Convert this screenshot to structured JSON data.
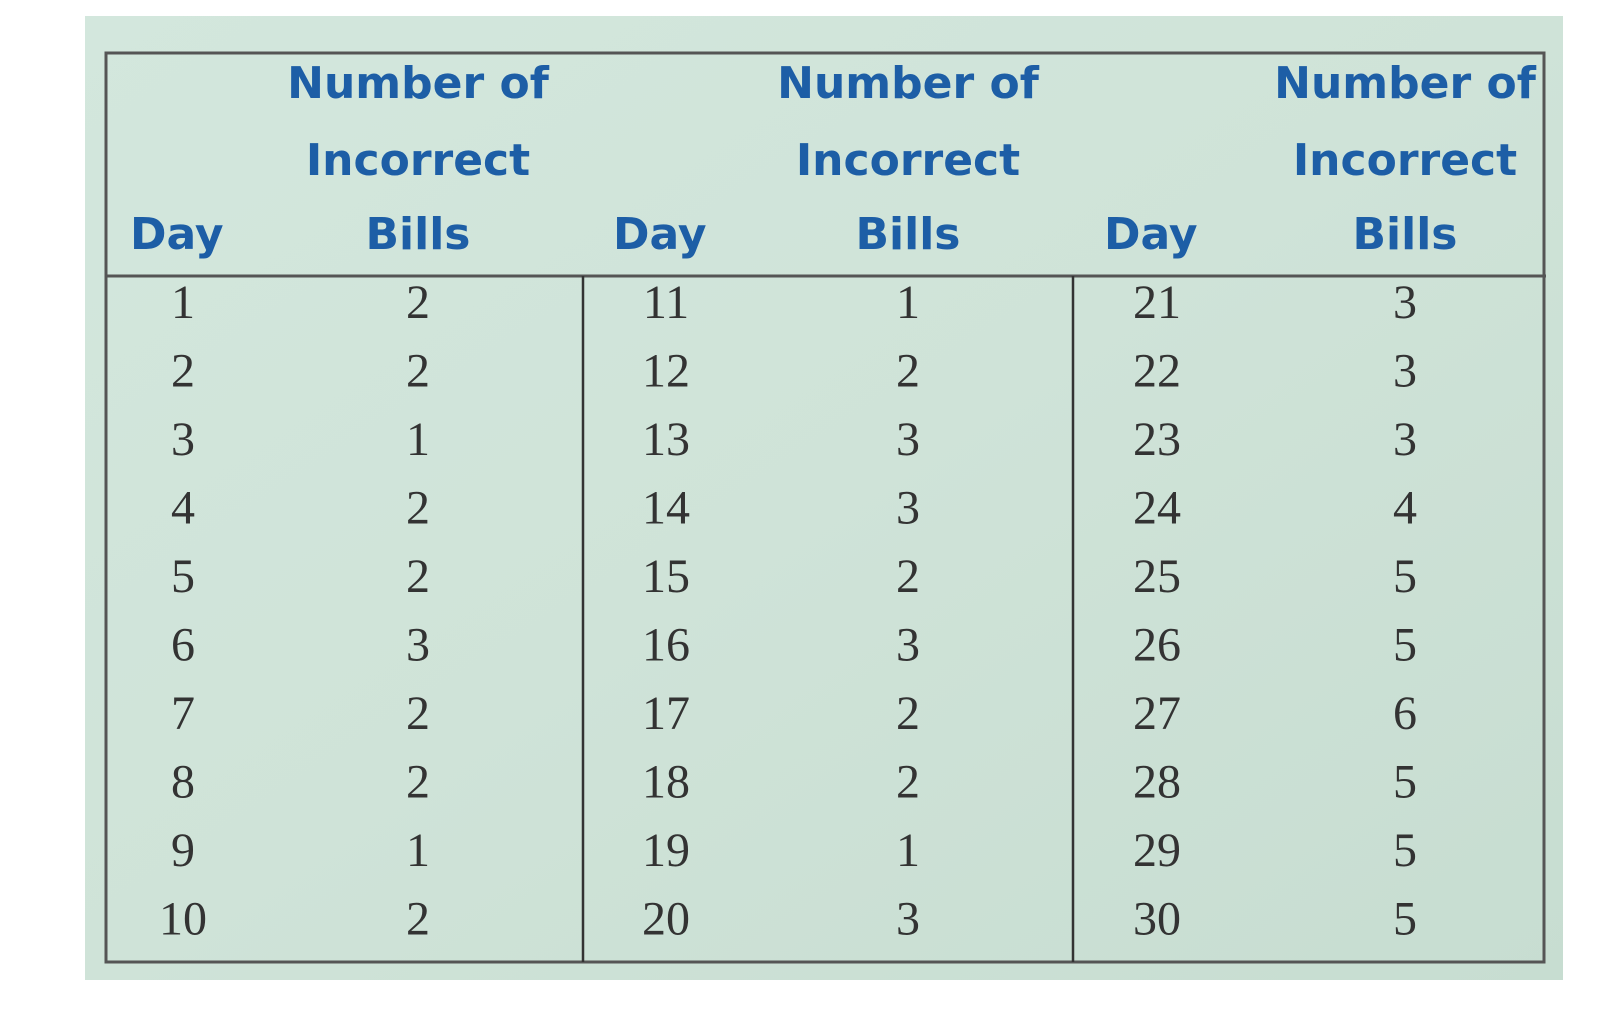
{
  "table": {
    "header": [
      "Day",
      [
        "Number of",
        "Incorrect",
        "Bills"
      ],
      "Day",
      [
        "Number of",
        "Incorrect",
        "Bills"
      ],
      "Day",
      [
        "Number of",
        "Incorrect",
        "Bills"
      ]
    ],
    "rows": [
      [
        1,
        2,
        11,
        1,
        21,
        3
      ],
      [
        2,
        2,
        12,
        2,
        22,
        3
      ],
      [
        3,
        1,
        13,
        3,
        23,
        3
      ],
      [
        4,
        2,
        14,
        3,
        24,
        4
      ],
      [
        5,
        2,
        15,
        2,
        25,
        5
      ],
      [
        6,
        3,
        16,
        3,
        26,
        5
      ],
      [
        7,
        2,
        17,
        2,
        27,
        6
      ],
      [
        8,
        2,
        18,
        2,
        28,
        5
      ],
      [
        9,
        1,
        19,
        1,
        29,
        5
      ],
      [
        10,
        2,
        20,
        3,
        30,
        5
      ]
    ]
  }
}
